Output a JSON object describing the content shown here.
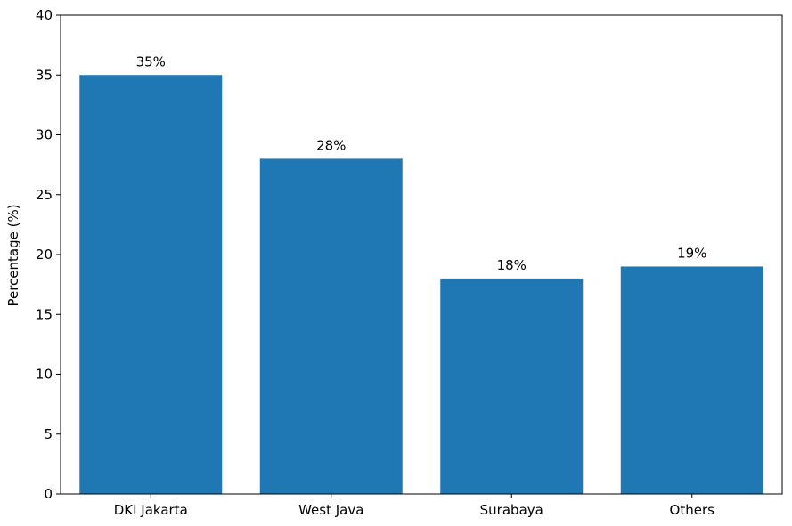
{
  "chart_data": {
    "type": "bar",
    "title": "",
    "xlabel": "",
    "ylabel": "Percentage (%)",
    "categories": [
      "DKI Jakarta",
      "West Java",
      "Surabaya",
      "Others"
    ],
    "values": [
      35,
      28,
      18,
      19
    ],
    "data_labels": [
      "35%",
      "28%",
      "18%",
      "19%"
    ],
    "ylim": [
      0,
      40
    ],
    "yticks": [
      0,
      5,
      10,
      15,
      20,
      25,
      30,
      35,
      40
    ],
    "ytick_labels": [
      "0",
      "5",
      "10",
      "15",
      "20",
      "25",
      "30",
      "35",
      "40"
    ],
    "grid": false,
    "legend": "none",
    "bar_color": "#1f77b4"
  }
}
